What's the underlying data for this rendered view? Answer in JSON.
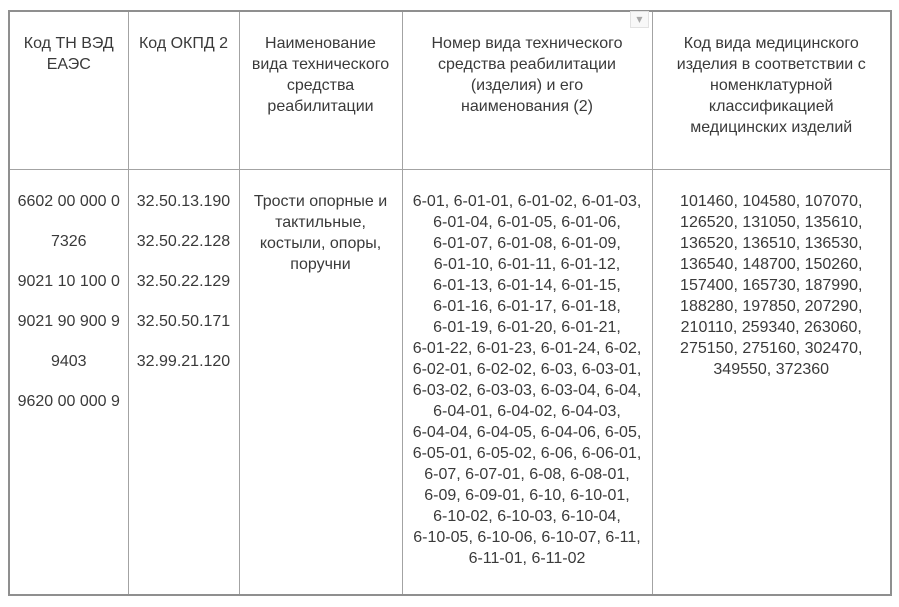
{
  "dropdown": {
    "glyph": "▼"
  },
  "table": {
    "headers": {
      "tn_ved": "Код ТН ВЭД ЕАЭС",
      "okpd2": "Код ОКПД 2",
      "rehab_name_lines": [
        "Наименование",
        "вида технического",
        "средства",
        "реабилитации"
      ],
      "rehab_number_lines": [
        "Номер вида технического",
        "средства реабилитации",
        "(изделия) и его",
        "наименования (2)"
      ],
      "med_code_lines": [
        "Код вида медицинского",
        "изделия в соответствии с",
        "номенклатурной",
        "классификацией",
        "медицинских изделий"
      ]
    },
    "row": {
      "tn_ved_codes": [
        "6602 00 000 0",
        "7326",
        "9021 10 100 0",
        "9021 90 900 9",
        "9403",
        "9620 00 000 9"
      ],
      "okpd2_codes": [
        "32.50.13.190",
        "32.50.22.128",
        "32.50.22.129",
        "32.50.50.171",
        "32.99.21.120"
      ],
      "rehab_name": "Трости опорные и тактильные, костыли, опоры, поручни",
      "rehab_numbers": [
        "6-01",
        "6-01-01",
        "6-01-02",
        "6-01-03",
        "6-01-04",
        "6-01-05",
        "6-01-06",
        "6-01-07",
        "6-01-08",
        "6-01-09",
        "6-01-10",
        "6-01-11",
        "6-01-12",
        "6-01-13",
        "6-01-14",
        "6-01-15",
        "6-01-16",
        "6-01-17",
        "6-01-18",
        "6-01-19",
        "6-01-20",
        "6-01-21",
        "6-01-22",
        "6-01-23",
        "6-01-24",
        "6-02",
        "6-02-01",
        "6-02-02",
        "6-03",
        "6-03-01",
        "6-03-02",
        "6-03-03",
        "6-03-04",
        "6-04",
        "6-04-01",
        "6-04-02",
        "6-04-03",
        "6-04-04",
        "6-04-05",
        "6-04-06",
        "6-05",
        "6-05-01",
        "6-05-02",
        "6-06",
        "6-06-01",
        "6-07",
        "6-07-01",
        "6-08",
        "6-08-01",
        "6-09",
        "6-09-01",
        "6-10",
        "6-10-01",
        "6-10-02",
        "6-10-03",
        "6-10-04",
        "6-10-05",
        "6-10-06",
        "6-10-07",
        "6-11",
        "6-11-01",
        "6-11-02"
      ],
      "medical_codes": [
        "101460",
        "104580",
        "107070",
        "126520",
        "131050",
        "135610",
        "136520",
        "136510",
        "136530",
        "136540",
        "148700",
        "150260",
        "157400",
        "165730",
        "187990",
        "188280",
        "197850",
        "207290",
        "210110",
        "259340",
        "263060",
        "275150",
        "275160",
        "302470",
        "349550",
        "372360"
      ]
    }
  }
}
